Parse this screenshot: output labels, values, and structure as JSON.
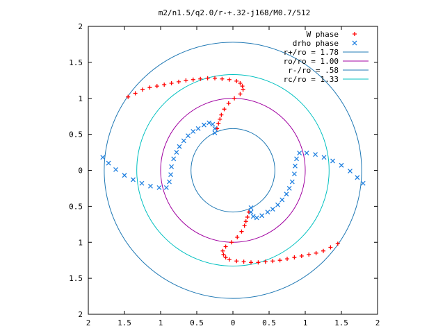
{
  "chart_data": {
    "type": "scatter",
    "title": "m2/n1.5/q2.0/r-+.32-j168/M0.7/512",
    "xlabel": "",
    "ylabel": "",
    "xlim": [
      -2,
      2
    ],
    "ylim": [
      -2,
      2
    ],
    "grid": false,
    "legend_position": "top-right",
    "x_ticks": [
      -2,
      -1.5,
      -1,
      -0.5,
      0,
      0.5,
      1,
      1.5,
      2
    ],
    "y_ticks": [
      -2,
      -1.5,
      -1,
      -0.5,
      0,
      0.5,
      1,
      1.5,
      2
    ],
    "x_tick_labels": [
      "2",
      "1.5",
      "1",
      "0.5",
      "0",
      "0.5",
      "1",
      "1.5",
      "2"
    ],
    "y_tick_labels": [
      "2",
      "1.5",
      "1",
      "0.5",
      "0",
      "0.5",
      "1",
      "1.5",
      "2"
    ],
    "series": [
      {
        "name": "W phase",
        "marker": "plus",
        "color": "#ff0000",
        "points": [
          [
            -1.45,
            1.02
          ],
          [
            -1.35,
            1.07
          ],
          [
            -1.25,
            1.12
          ],
          [
            -1.15,
            1.15
          ],
          [
            -1.05,
            1.17
          ],
          [
            -0.95,
            1.19
          ],
          [
            -0.85,
            1.21
          ],
          [
            -0.75,
            1.23
          ],
          [
            -0.65,
            1.25
          ],
          [
            -0.55,
            1.26
          ],
          [
            -0.45,
            1.27
          ],
          [
            -0.35,
            1.28
          ],
          [
            -0.25,
            1.28
          ],
          [
            -0.15,
            1.27
          ],
          [
            -0.05,
            1.26
          ],
          [
            0.05,
            1.24
          ],
          [
            0.1,
            1.21
          ],
          [
            0.13,
            1.17
          ],
          [
            0.14,
            1.12
          ],
          [
            0.1,
            1.06
          ],
          [
            0.02,
            1.0
          ],
          [
            -0.06,
            0.93
          ],
          [
            -0.12,
            0.85
          ],
          [
            -0.16,
            0.77
          ],
          [
            -0.18,
            0.71
          ],
          [
            -0.2,
            0.65
          ],
          [
            -0.22,
            0.58
          ],
          [
            1.45,
            -1.02
          ],
          [
            1.35,
            -1.07
          ],
          [
            1.25,
            -1.12
          ],
          [
            1.15,
            -1.15
          ],
          [
            1.05,
            -1.17
          ],
          [
            0.95,
            -1.19
          ],
          [
            0.85,
            -1.21
          ],
          [
            0.75,
            -1.23
          ],
          [
            0.65,
            -1.25
          ],
          [
            0.55,
            -1.26
          ],
          [
            0.45,
            -1.27
          ],
          [
            0.35,
            -1.28
          ],
          [
            0.25,
            -1.28
          ],
          [
            0.15,
            -1.27
          ],
          [
            0.05,
            -1.26
          ],
          [
            -0.05,
            -1.24
          ],
          [
            -0.1,
            -1.21
          ],
          [
            -0.13,
            -1.17
          ],
          [
            -0.14,
            -1.12
          ],
          [
            -0.1,
            -1.06
          ],
          [
            -0.02,
            -1.0
          ],
          [
            0.06,
            -0.93
          ],
          [
            0.12,
            -0.85
          ],
          [
            0.16,
            -0.77
          ],
          [
            0.18,
            -0.71
          ],
          [
            0.2,
            -0.65
          ],
          [
            0.22,
            -0.58
          ]
        ]
      },
      {
        "name": "drho phase",
        "marker": "cross",
        "color": "#2080e0",
        "points": [
          [
            -1.8,
            0.18
          ],
          [
            -1.72,
            0.1
          ],
          [
            -1.62,
            0.01
          ],
          [
            -1.5,
            -0.07
          ],
          [
            -1.38,
            -0.13
          ],
          [
            -1.26,
            -0.18
          ],
          [
            -1.14,
            -0.22
          ],
          [
            -1.02,
            -0.24
          ],
          [
            -0.92,
            -0.24
          ],
          [
            -0.88,
            -0.16
          ],
          [
            -0.86,
            -0.06
          ],
          [
            -0.85,
            0.05
          ],
          [
            -0.82,
            0.16
          ],
          [
            -0.78,
            0.25
          ],
          [
            -0.74,
            0.33
          ],
          [
            -0.68,
            0.41
          ],
          [
            -0.62,
            0.48
          ],
          [
            -0.55,
            0.54
          ],
          [
            -0.48,
            0.58
          ],
          [
            -0.4,
            0.63
          ],
          [
            -0.33,
            0.66
          ],
          [
            -0.28,
            0.64
          ],
          [
            -0.25,
            0.58
          ],
          [
            -0.25,
            0.52
          ],
          [
            1.8,
            -0.18
          ],
          [
            1.72,
            -0.1
          ],
          [
            1.62,
            -0.01
          ],
          [
            1.5,
            0.07
          ],
          [
            1.38,
            0.13
          ],
          [
            1.26,
            0.18
          ],
          [
            1.14,
            0.22
          ],
          [
            1.02,
            0.24
          ],
          [
            0.92,
            0.24
          ],
          [
            0.88,
            0.16
          ],
          [
            0.86,
            0.06
          ],
          [
            0.85,
            -0.05
          ],
          [
            0.82,
            -0.16
          ],
          [
            0.78,
            -0.25
          ],
          [
            0.74,
            -0.33
          ],
          [
            0.68,
            -0.41
          ],
          [
            0.62,
            -0.48
          ],
          [
            0.55,
            -0.54
          ],
          [
            0.48,
            -0.58
          ],
          [
            0.4,
            -0.63
          ],
          [
            0.33,
            -0.66
          ],
          [
            0.28,
            -0.64
          ],
          [
            0.25,
            -0.58
          ],
          [
            0.25,
            -0.52
          ]
        ]
      }
    ],
    "circles": [
      {
        "name": "r+/ro = 1.78",
        "radius": 1.78,
        "color": "#1f78b4"
      },
      {
        "name": "ro/ro = 1.00",
        "radius": 1.0,
        "color": "#a000a0"
      },
      {
        "name": "r-/ro = .58",
        "radius": 0.58,
        "color": "#1f78b4"
      },
      {
        "name": "rc/ro = 1.33",
        "radius": 1.33,
        "color": "#00c0c0"
      }
    ]
  }
}
